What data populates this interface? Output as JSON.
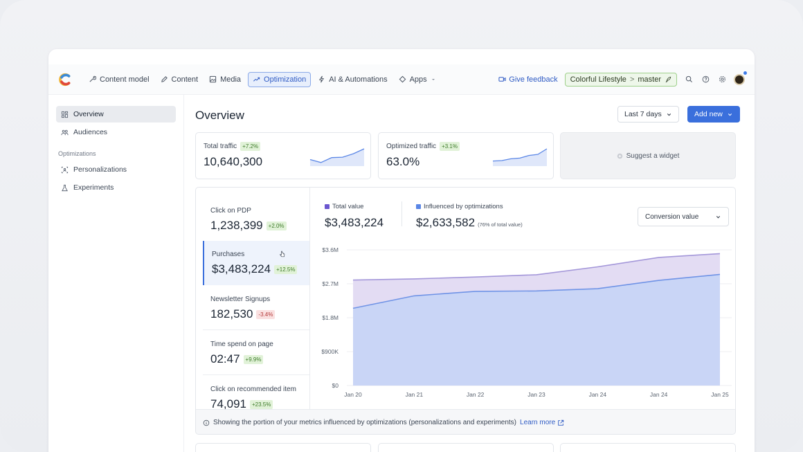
{
  "nav": {
    "items": [
      {
        "label": "Content model",
        "icon": "wrench-icon"
      },
      {
        "label": "Content",
        "icon": "pen-icon"
      },
      {
        "label": "Media",
        "icon": "image-icon"
      },
      {
        "label": "Optimization",
        "icon": "trend-icon"
      },
      {
        "label": "AI & Automations",
        "icon": "lightning-icon"
      },
      {
        "label": "Apps",
        "icon": "puzzle-icon"
      }
    ],
    "feedback": "Give feedback",
    "space": "Colorful Lifestyle",
    "environment": "master"
  },
  "sidebar": {
    "items": [
      {
        "label": "Overview"
      },
      {
        "label": "Audiences"
      }
    ],
    "section": "Optimizations",
    "opt_items": [
      {
        "label": "Personalizations"
      },
      {
        "label": "Experiments"
      }
    ]
  },
  "header": {
    "title": "Overview",
    "range": "Last 7 days",
    "add": "Add new"
  },
  "kpis": [
    {
      "label": "Total traffic",
      "badge": "+7.2%",
      "value": "10,640,300",
      "spark": [
        3,
        1.5,
        4,
        4.2,
        6,
        8.5
      ]
    },
    {
      "label": "Optimized traffic",
      "badge": "+3.1%",
      "value": "63.0%",
      "spark": [
        2,
        2.2,
        3,
        3.3,
        4.5,
        5,
        7.5
      ]
    }
  ],
  "suggest": "Suggest a widget",
  "metrics": [
    {
      "label": "Click on PDP",
      "value": "1,238,399",
      "badge": "+2.0%",
      "dir": "up"
    },
    {
      "label": "Purchases",
      "value": "$3,483,224",
      "badge": "+12.5%",
      "dir": "up"
    },
    {
      "label": "Newsletter Signups",
      "value": "182,530",
      "badge": "-3.4%",
      "dir": "down"
    },
    {
      "label": "Time spend on page",
      "value": "02:47",
      "badge": "+9.9%",
      "dir": "up"
    },
    {
      "label": "Click on recommended item",
      "value": "74,091",
      "badge": "+23.5%",
      "dir": "up"
    }
  ],
  "legend": {
    "total_label": "Total value",
    "total_value": "$3,483,224",
    "influenced_label": "Influenced by optimizations",
    "influenced_value": "$2,633,582",
    "influenced_note": "(76% of total value)"
  },
  "select": "Conversion value",
  "chart_data": {
    "type": "area",
    "x": [
      "Jan 20",
      "Jan 21",
      "Jan 22",
      "Jan 23",
      "Jan 24",
      "Jan 24",
      "Jan 25"
    ],
    "ytick_labels": [
      "$3.6M",
      "$2.7M",
      "$1.8M",
      "$900K",
      "$0"
    ],
    "ylim": [
      0,
      3600000
    ],
    "series": [
      {
        "name": "Total value",
        "values": [
          2800000,
          2830000,
          2880000,
          2940000,
          3150000,
          3400000,
          3500000
        ],
        "color": "#e3dcf3"
      },
      {
        "name": "Influenced by optimizations",
        "values": [
          2050000,
          2380000,
          2500000,
          2510000,
          2570000,
          2790000,
          2950000
        ],
        "color": "#c9d5f6"
      }
    ],
    "colors": {
      "total_marker": "#6b57cf",
      "influenced_marker": "#5a86e6",
      "total_line": "#a396d9",
      "influenced_line": "#6f93e6"
    }
  },
  "footer": {
    "text": "Showing the portion of your metrics influenced by optimizations (personalizations and experiments)",
    "link": "Learn more"
  }
}
